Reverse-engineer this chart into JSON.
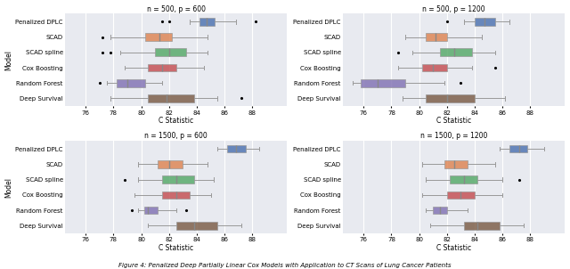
{
  "subplots": [
    {
      "title": "n = 500, p = 600",
      "models": [
        "Penalized DPLC",
        "SCAD",
        "SCAD spline",
        "Cox Boosting",
        "Random Forest",
        "Deep Survival"
      ],
      "colors": [
        "#4C72B0",
        "#DD8452",
        "#55A868",
        "#C44E52",
        "#8172B3",
        "#7B5C45"
      ],
      "box_data": [
        {
          "whislo": 83.5,
          "q1": 84.2,
          "med": 84.7,
          "q3": 85.3,
          "whishi": 86.8,
          "fliers": [
            81.5,
            82.0,
            88.2
          ]
        },
        {
          "whislo": 77.8,
          "q1": 80.3,
          "med": 81.3,
          "q3": 82.2,
          "whishi": 84.8,
          "fliers": [
            77.2
          ]
        },
        {
          "whislo": 78.5,
          "q1": 81.0,
          "med": 82.0,
          "q3": 83.2,
          "whishi": 84.8,
          "fliers": [
            77.2,
            77.8
          ]
        },
        {
          "whislo": 78.8,
          "q1": 80.5,
          "med": 81.5,
          "q3": 82.5,
          "whishi": 84.5,
          "fliers": []
        },
        {
          "whislo": 77.5,
          "q1": 78.2,
          "med": 79.0,
          "q3": 80.3,
          "whishi": 81.5,
          "fliers": [
            77.0
          ]
        },
        {
          "whislo": 77.8,
          "q1": 80.5,
          "med": 81.8,
          "q3": 83.8,
          "whishi": 85.5,
          "fliers": [
            87.2
          ]
        }
      ],
      "xlim": [
        74.5,
        90.5
      ],
      "xticks": [
        76,
        78,
        80,
        82,
        84,
        86,
        88
      ]
    },
    {
      "title": "n = 500, p = 1200",
      "models": [
        "Penalized DPLC",
        "SCAD",
        "SCAD spline",
        "Cox Boosting",
        "Random Forest",
        "Deep Survival"
      ],
      "colors": [
        "#4C72B0",
        "#DD8452",
        "#55A868",
        "#C44E52",
        "#8172B3",
        "#7B5C45"
      ],
      "box_data": [
        {
          "whislo": 83.2,
          "q1": 84.0,
          "med": 84.7,
          "q3": 85.5,
          "whishi": 86.5,
          "fliers": [
            82.0
          ]
        },
        {
          "whislo": 79.0,
          "q1": 80.5,
          "med": 81.2,
          "q3": 82.0,
          "whishi": 84.5,
          "fliers": []
        },
        {
          "whislo": 79.5,
          "q1": 81.5,
          "med": 82.5,
          "q3": 83.8,
          "whishi": 85.5,
          "fliers": [
            78.5
          ]
        },
        {
          "whislo": 78.5,
          "q1": 80.2,
          "med": 81.0,
          "q3": 82.0,
          "whishi": 83.8,
          "fliers": [
            85.5
          ]
        },
        {
          "whislo": 75.2,
          "q1": 75.8,
          "med": 77.0,
          "q3": 79.0,
          "whishi": 81.8,
          "fliers": [
            83.0
          ]
        },
        {
          "whislo": 78.8,
          "q1": 80.5,
          "med": 82.0,
          "q3": 84.0,
          "whishi": 86.2,
          "fliers": []
        }
      ],
      "xlim": [
        74.5,
        90.5
      ],
      "xticks": [
        76,
        78,
        80,
        82,
        84,
        86,
        88
      ]
    },
    {
      "title": "n = 1500, p = 600",
      "models": [
        "Penalized DPLC",
        "SCAD",
        "SCAD spline",
        "Cox Boosting",
        "Random Forest",
        "Deep Survival"
      ],
      "colors": [
        "#4C72B0",
        "#DD8452",
        "#55A868",
        "#C44E52",
        "#8172B3",
        "#7B5C45"
      ],
      "box_data": [
        {
          "whislo": 85.5,
          "q1": 86.2,
          "med": 86.8,
          "q3": 87.5,
          "whishi": 88.5,
          "fliers": []
        },
        {
          "whislo": 79.8,
          "q1": 81.2,
          "med": 82.0,
          "q3": 83.0,
          "whishi": 84.8,
          "fliers": []
        },
        {
          "whislo": 79.8,
          "q1": 81.5,
          "med": 82.5,
          "q3": 83.8,
          "whishi": 85.2,
          "fliers": [
            78.8
          ]
        },
        {
          "whislo": 79.5,
          "q1": 81.5,
          "med": 82.5,
          "q3": 83.5,
          "whishi": 85.0,
          "fliers": []
        },
        {
          "whislo": 79.8,
          "q1": 80.2,
          "med": 80.5,
          "q3": 81.2,
          "whishi": 82.5,
          "fliers": [
            79.3,
            83.2
          ]
        },
        {
          "whislo": 80.5,
          "q1": 82.5,
          "med": 83.8,
          "q3": 85.5,
          "whishi": 87.2,
          "fliers": []
        }
      ],
      "xlim": [
        74.5,
        90.5
      ],
      "xticks": [
        76,
        78,
        80,
        82,
        84,
        86,
        88
      ]
    },
    {
      "title": "n = 1500, p = 1200",
      "models": [
        "Penalized DPLC",
        "SCAD",
        "SCAD spline",
        "Cox Boosting",
        "Random Forest",
        "Deep Survival"
      ],
      "colors": [
        "#4C72B0",
        "#DD8452",
        "#55A868",
        "#C44E52",
        "#8172B3",
        "#7B5C45"
      ],
      "box_data": [
        {
          "whislo": 85.8,
          "q1": 86.5,
          "med": 87.2,
          "q3": 87.8,
          "whishi": 89.0,
          "fliers": []
        },
        {
          "whislo": 80.2,
          "q1": 81.8,
          "med": 82.5,
          "q3": 83.5,
          "whishi": 85.5,
          "fliers": []
        },
        {
          "whislo": 80.5,
          "q1": 82.2,
          "med": 83.2,
          "q3": 84.2,
          "whishi": 86.0,
          "fliers": [
            87.2
          ]
        },
        {
          "whislo": 80.2,
          "q1": 82.0,
          "med": 83.0,
          "q3": 84.0,
          "whishi": 86.0,
          "fliers": []
        },
        {
          "whislo": 80.5,
          "q1": 81.0,
          "med": 81.5,
          "q3": 82.0,
          "whishi": 83.5,
          "fliers": []
        },
        {
          "whislo": 80.8,
          "q1": 83.2,
          "med": 84.2,
          "q3": 85.8,
          "whishi": 87.5,
          "fliers": []
        }
      ],
      "xlim": [
        74.5,
        90.5
      ],
      "xticks": [
        76,
        78,
        80,
        82,
        84,
        86,
        88
      ]
    }
  ],
  "fig_caption": "Figure 4: Penalized Deep Partially Linear Cox Models with Application to CT Scans of Lung Cancer Patients",
  "xlabel": "C Statistic",
  "ylabel": "Model",
  "bg_color": "#E8EAF0",
  "grid_color": "white"
}
